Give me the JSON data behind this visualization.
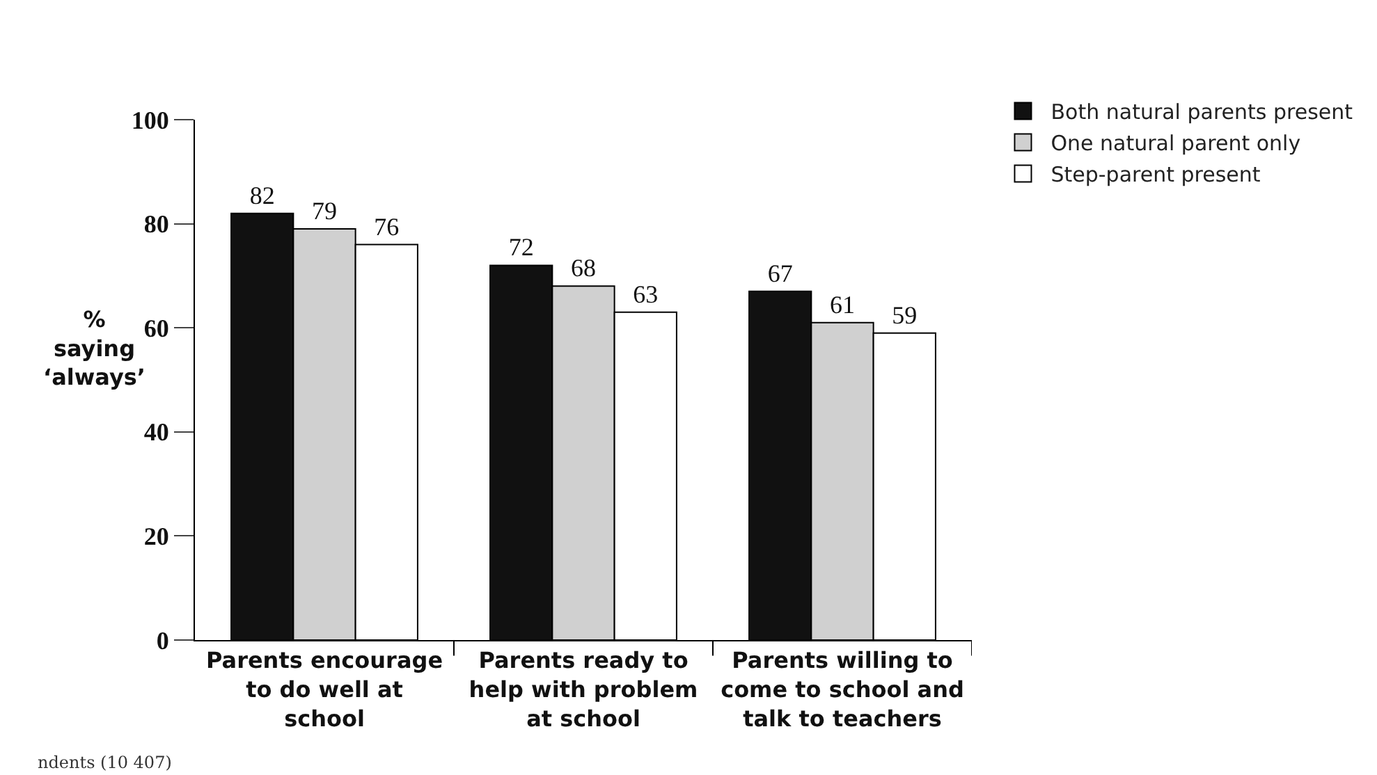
{
  "chart_data": {
    "type": "bar",
    "ylabel": "% saying ‘always’",
    "categories": [
      "Parents encourage to do well at school",
      "Parents ready to help with problem at school",
      "Parents willing to come to school and talk to teachers"
    ],
    "series": [
      {
        "name": "Both natural parents present",
        "color": "#111111",
        "values": [
          82,
          72,
          67
        ]
      },
      {
        "name": "One natural parent only",
        "color": "#d0d0d0",
        "values": [
          79,
          68,
          61
        ]
      },
      {
        "name": "Step-parent present",
        "color": "#ffffff",
        "values": [
          76,
          63,
          59
        ]
      }
    ],
    "ylim": [
      0,
      100
    ],
    "yticks": [
      0,
      20,
      40,
      60,
      80,
      100
    ],
    "grid": false,
    "legend": "top right",
    "data_labels": true,
    "annotations": [
      "ndents (10 407)"
    ]
  }
}
